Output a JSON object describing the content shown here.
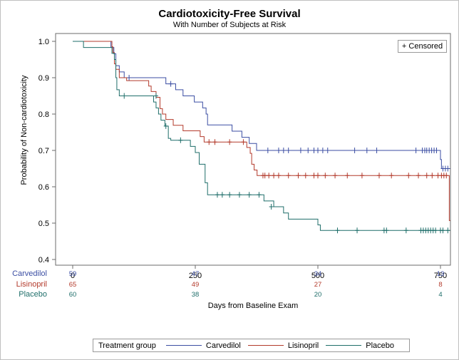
{
  "chart_data": {
    "type": "line",
    "title": "Cardiotoxicity-Free Survival",
    "subtitle": "With Number of Subjects at Risk",
    "xlabel": "Days from Baseline Exam",
    "ylabel": "Probability of Non-cardiotoxicity",
    "xlim": [
      0,
      770
    ],
    "ylim": [
      0.4,
      1.0
    ],
    "xticks": [
      "0",
      "250",
      "500",
      "750"
    ],
    "xtick_values": [
      0,
      250,
      500,
      750
    ],
    "yticks": [
      "0.4",
      "0.5",
      "0.6",
      "0.7",
      "0.8",
      "0.9",
      "1.0"
    ],
    "ytick_values": [
      0.4,
      0.5,
      0.6,
      0.7,
      0.8,
      0.9,
      1.0
    ],
    "censored_label": "+ Censored",
    "legend_title": "Treatment group",
    "legend_placement": "bottom",
    "grid": false,
    "series": [
      {
        "name": "Carvedilol",
        "color": "#3b4ea3",
        "steps": [
          [
            0,
            1.0
          ],
          [
            78,
            0.983
          ],
          [
            84,
            0.966
          ],
          [
            88,
            0.933
          ],
          [
            95,
            0.916
          ],
          [
            105,
            0.9
          ],
          [
            190,
            0.883
          ],
          [
            210,
            0.867
          ],
          [
            225,
            0.85
          ],
          [
            248,
            0.833
          ],
          [
            265,
            0.817
          ],
          [
            272,
            0.8
          ],
          [
            275,
            0.77
          ],
          [
            325,
            0.753
          ],
          [
            345,
            0.736
          ],
          [
            360,
            0.719
          ],
          [
            375,
            0.7
          ],
          [
            748,
            0.7
          ],
          [
            750,
            0.675
          ],
          [
            752,
            0.65
          ],
          [
            770,
            0.65
          ]
        ],
        "censored": [
          [
            115,
            0.9
          ],
          [
            200,
            0.883
          ],
          [
            398,
            0.7
          ],
          [
            420,
            0.7
          ],
          [
            430,
            0.7
          ],
          [
            440,
            0.7
          ],
          [
            465,
            0.7
          ],
          [
            480,
            0.7
          ],
          [
            492,
            0.7
          ],
          [
            500,
            0.7
          ],
          [
            510,
            0.7
          ],
          [
            520,
            0.7
          ],
          [
            575,
            0.7
          ],
          [
            600,
            0.7
          ],
          [
            620,
            0.7
          ],
          [
            700,
            0.7
          ],
          [
            713,
            0.7
          ],
          [
            718,
            0.7
          ],
          [
            722,
            0.7
          ],
          [
            727,
            0.7
          ],
          [
            732,
            0.7
          ],
          [
            737,
            0.7
          ],
          [
            742,
            0.7
          ],
          [
            755,
            0.65
          ],
          [
            760,
            0.65
          ],
          [
            765,
            0.65
          ]
        ],
        "at_risk_label": "Carvedilol",
        "at_risk": [
          "59",
          "47",
          "34",
          "13"
        ]
      },
      {
        "name": "Lisinopril",
        "color": "#b33a2b",
        "steps": [
          [
            0,
            1.0
          ],
          [
            80,
            0.985
          ],
          [
            82,
            0.969
          ],
          [
            85,
            0.938
          ],
          [
            88,
            0.923
          ],
          [
            95,
            0.9
          ],
          [
            110,
            0.892
          ],
          [
            155,
            0.877
          ],
          [
            160,
            0.862
          ],
          [
            170,
            0.846
          ],
          [
            178,
            0.815
          ],
          [
            183,
            0.8
          ],
          [
            190,
            0.785
          ],
          [
            205,
            0.769
          ],
          [
            225,
            0.754
          ],
          [
            260,
            0.738
          ],
          [
            268,
            0.723
          ],
          [
            330,
            0.723
          ],
          [
            355,
            0.708
          ],
          [
            362,
            0.692
          ],
          [
            365,
            0.662
          ],
          [
            370,
            0.646
          ],
          [
            376,
            0.631
          ],
          [
            765,
            0.631
          ],
          [
            768,
            0.507
          ],
          [
            770,
            0.507
          ]
        ],
        "censored": [
          [
            278,
            0.723
          ],
          [
            290,
            0.723
          ],
          [
            320,
            0.723
          ],
          [
            348,
            0.723
          ],
          [
            388,
            0.631
          ],
          [
            392,
            0.631
          ],
          [
            400,
            0.631
          ],
          [
            410,
            0.631
          ],
          [
            420,
            0.631
          ],
          [
            440,
            0.631
          ],
          [
            460,
            0.631
          ],
          [
            475,
            0.631
          ],
          [
            492,
            0.631
          ],
          [
            500,
            0.631
          ],
          [
            515,
            0.631
          ],
          [
            535,
            0.631
          ],
          [
            560,
            0.631
          ],
          [
            590,
            0.631
          ],
          [
            625,
            0.631
          ],
          [
            650,
            0.631
          ],
          [
            685,
            0.631
          ],
          [
            705,
            0.631
          ],
          [
            722,
            0.631
          ],
          [
            733,
            0.631
          ],
          [
            745,
            0.631
          ],
          [
            752,
            0.631
          ],
          [
            757,
            0.631
          ],
          [
            762,
            0.631
          ]
        ],
        "at_risk_label": "Lisinopril",
        "at_risk": [
          "65",
          "49",
          "27",
          "8"
        ]
      },
      {
        "name": "Placebo",
        "color": "#1f6e6a",
        "steps": [
          [
            0,
            1.0
          ],
          [
            22,
            0.983
          ],
          [
            80,
            0.967
          ],
          [
            85,
            0.95
          ],
          [
            88,
            0.9
          ],
          [
            90,
            0.867
          ],
          [
            95,
            0.85
          ],
          [
            165,
            0.833
          ],
          [
            170,
            0.817
          ],
          [
            175,
            0.8
          ],
          [
            180,
            0.783
          ],
          [
            188,
            0.767
          ],
          [
            195,
            0.733
          ],
          [
            200,
            0.728
          ],
          [
            240,
            0.711
          ],
          [
            250,
            0.694
          ],
          [
            258,
            0.662
          ],
          [
            270,
            0.611
          ],
          [
            275,
            0.578
          ],
          [
            385,
            0.578
          ],
          [
            390,
            0.561
          ],
          [
            410,
            0.545
          ],
          [
            430,
            0.528
          ],
          [
            440,
            0.511
          ],
          [
            500,
            0.495
          ],
          [
            505,
            0.48
          ],
          [
            770,
            0.48
          ]
        ],
        "censored": [
          [
            105,
            0.85
          ],
          [
            170,
            0.85
          ],
          [
            190,
            0.767
          ],
          [
            220,
            0.728
          ],
          [
            295,
            0.578
          ],
          [
            305,
            0.578
          ],
          [
            320,
            0.578
          ],
          [
            340,
            0.578
          ],
          [
            360,
            0.578
          ],
          [
            380,
            0.578
          ],
          [
            405,
            0.545
          ],
          [
            540,
            0.48
          ],
          [
            580,
            0.48
          ],
          [
            635,
            0.48
          ],
          [
            640,
            0.48
          ],
          [
            680,
            0.48
          ],
          [
            710,
            0.48
          ],
          [
            715,
            0.48
          ],
          [
            720,
            0.48
          ],
          [
            725,
            0.48
          ],
          [
            730,
            0.48
          ],
          [
            735,
            0.48
          ],
          [
            740,
            0.48
          ],
          [
            750,
            0.48
          ],
          [
            755,
            0.48
          ],
          [
            765,
            0.48
          ]
        ],
        "at_risk_label": "Placebo",
        "at_risk": [
          "60",
          "38",
          "20",
          "4"
        ]
      }
    ]
  }
}
